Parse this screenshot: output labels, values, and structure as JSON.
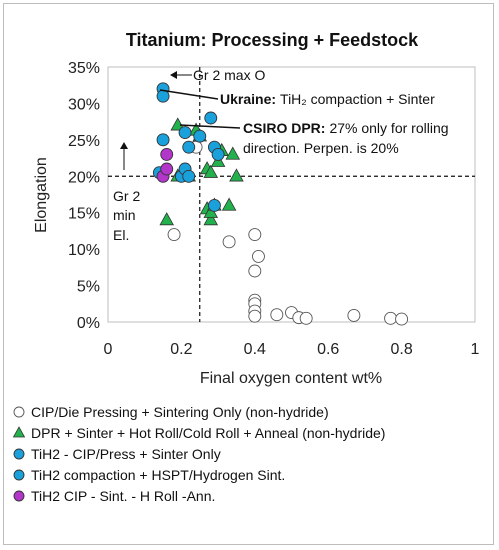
{
  "chart_data": {
    "type": "scatter",
    "title": "Titanium: Processing + Feedstock",
    "xlabel": "Final oxygen content wt%",
    "ylabel": "Elongation",
    "xlim": [
      0,
      1
    ],
    "ylim": [
      0,
      35
    ],
    "x_ticks": [
      "0",
      "0.2",
      "0.4",
      "0.6",
      "0.8",
      "1"
    ],
    "y_ticks": [
      "0%",
      "5%",
      "10%",
      "15%",
      "20%",
      "25%",
      "30%",
      "35%"
    ],
    "grid": false,
    "legend_position": "bottom",
    "reference_lines": [
      {
        "orientation": "vertical",
        "x": 0.25,
        "style": "dashed"
      },
      {
        "orientation": "horizontal",
        "y": 20,
        "style": "dashed"
      }
    ],
    "annotations": [
      {
        "text": "Gr 2 max O"
      },
      {
        "text_bold": "Ukraine:",
        "text": "TiH₂ compaction + Sinter"
      },
      {
        "text_bold": "CSIRO DPR:",
        "text": "27% only for rolling",
        "text2": "direction. Perpen. is 20%"
      },
      {
        "lines": [
          "Gr 2",
          "min",
          "El."
        ]
      }
    ],
    "series": [
      {
        "name": "CIP/Die Pressing + Sintering Only (non-hydride)",
        "marker": "circle",
        "color": "#ffffff",
        "stroke": "#555555",
        "points": [
          [
            0.18,
            12
          ],
          [
            0.24,
            24
          ],
          [
            0.33,
            11
          ],
          [
            0.4,
            12
          ],
          [
            0.41,
            9
          ],
          [
            0.4,
            7
          ],
          [
            0.4,
            3
          ],
          [
            0.4,
            2.5
          ],
          [
            0.4,
            1.5
          ],
          [
            0.4,
            0.8
          ],
          [
            0.46,
            1
          ],
          [
            0.5,
            1.3
          ],
          [
            0.52,
            0.6
          ],
          [
            0.54,
            0.5
          ],
          [
            0.67,
            0.9
          ],
          [
            0.77,
            0.5
          ],
          [
            0.8,
            0.4
          ]
        ]
      },
      {
        "name": "DPR + Sinter + Hot Roll/Cold Roll + Anneal (non-hydride)",
        "marker": "triangle",
        "color": "#22b14c",
        "stroke": "#333333",
        "points": [
          [
            0.16,
            14
          ],
          [
            0.19,
            27
          ],
          [
            0.19,
            20
          ],
          [
            0.22,
            20
          ],
          [
            0.24,
            26.3
          ],
          [
            0.25,
            25.5
          ],
          [
            0.27,
            15.5
          ],
          [
            0.27,
            21
          ],
          [
            0.28,
            14
          ],
          [
            0.28,
            15
          ],
          [
            0.29,
            16
          ],
          [
            0.3,
            22
          ],
          [
            0.31,
            23.5
          ],
          [
            0.33,
            16
          ],
          [
            0.34,
            23
          ],
          [
            0.35,
            20
          ],
          [
            0.28,
            20.5
          ]
        ]
      },
      {
        "name": "TiH2 - CIP/Press + Sinter Only",
        "marker": "circle",
        "color": "#1aa1dc",
        "stroke": "#333333",
        "points": [
          [
            0.14,
            20.5
          ],
          [
            0.15,
            25
          ],
          [
            0.2,
            20
          ],
          [
            0.21,
            21
          ],
          [
            0.21,
            26
          ],
          [
            0.22,
            24
          ],
          [
            0.22,
            20
          ],
          [
            0.25,
            25.5
          ],
          [
            0.29,
            24
          ],
          [
            0.29,
            16
          ],
          [
            0.3,
            23
          ]
        ]
      },
      {
        "name": "TiH2 compaction + HSPT/Hydrogen Sint.",
        "marker": "circle",
        "color": "#1aa1dc",
        "stroke": "#333333",
        "points": [
          [
            0.15,
            32
          ],
          [
            0.15,
            31
          ],
          [
            0.28,
            28
          ]
        ]
      },
      {
        "name": "TiH2 CIP - Sint. - H Roll -Ann.",
        "marker": "circle",
        "color": "#b136c9",
        "stroke": "#333333",
        "points": [
          [
            0.15,
            20
          ],
          [
            0.16,
            21
          ],
          [
            0.16,
            23
          ]
        ]
      }
    ]
  }
}
